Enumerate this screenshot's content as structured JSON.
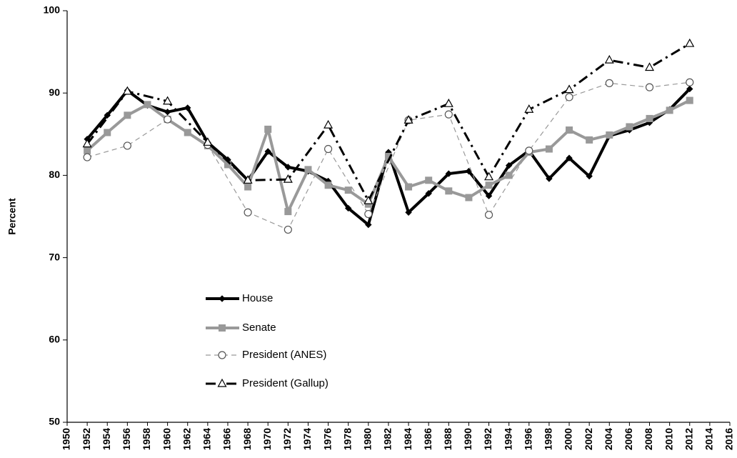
{
  "chart_data": {
    "type": "line",
    "y_label": "Percent",
    "xlim": [
      1950,
      2016
    ],
    "xticks": [
      1950,
      1952,
      1954,
      1956,
      1958,
      1960,
      1962,
      1964,
      1966,
      1968,
      1970,
      1972,
      1974,
      1976,
      1978,
      1980,
      1982,
      1984,
      1986,
      1988,
      1990,
      1992,
      1994,
      1996,
      1998,
      2000,
      2002,
      2004,
      2006,
      2008,
      2010,
      2012,
      2014,
      2016
    ],
    "ylim": [
      50,
      100
    ],
    "yticks": [
      50,
      60,
      70,
      80,
      90,
      100
    ],
    "grid": false,
    "legend": "lower-left",
    "series": [
      {
        "name": "House",
        "color": "#000000",
        "line_style": "solid",
        "marker": "diamond",
        "x": [
          1952,
          1954,
          1956,
          1958,
          1960,
          1962,
          1964,
          1966,
          1968,
          1970,
          1972,
          1974,
          1976,
          1978,
          1980,
          1982,
          1984,
          1986,
          1988,
          1990,
          1992,
          1994,
          1996,
          1998,
          2000,
          2002,
          2004,
          2006,
          2008,
          2010,
          2012
        ],
        "values": [
          84.4,
          87.3,
          90.3,
          88.5,
          87.7,
          88.2,
          84,
          81.9,
          79.4,
          82.9,
          81,
          80.5,
          79.3,
          76,
          74,
          82.8,
          75.5,
          77.8,
          80.2,
          80.5,
          77.5,
          81.2,
          83,
          79.6,
          82.1,
          79.9,
          84.8,
          85.5,
          86.4,
          88,
          90.5
        ]
      },
      {
        "name": "Senate",
        "color": "#999999",
        "line_style": "solid",
        "marker": "square",
        "x": [
          1952,
          1954,
          1956,
          1958,
          1960,
          1962,
          1964,
          1966,
          1968,
          1970,
          1972,
          1974,
          1976,
          1978,
          1980,
          1982,
          1984,
          1986,
          1988,
          1990,
          1992,
          1994,
          1996,
          1998,
          2000,
          2002,
          2004,
          2006,
          2008,
          2010,
          2012
        ],
        "values": [
          83,
          85.2,
          87.3,
          88.6,
          86.8,
          85.2,
          83.6,
          81.3,
          78.6,
          85.6,
          75.6,
          80.7,
          78.8,
          78.2,
          76.5,
          82.3,
          78.6,
          79.4,
          78.1,
          77.3,
          78.8,
          80,
          82.8,
          83.2,
          85.5,
          84.3,
          84.9,
          85.9,
          86.9,
          87.9,
          89.1
        ]
      },
      {
        "name": "President (ANES)",
        "color": "#999999",
        "line_style": "dashed",
        "marker": "circle",
        "x": [
          1952,
          1956,
          1960,
          1964,
          1968,
          1972,
          1976,
          1980,
          1984,
          1988,
          1992,
          1996,
          2000,
          2004,
          2008,
          2012
        ],
        "values": [
          82.2,
          83.6,
          86.8,
          83.7,
          75.5,
          73.4,
          83.2,
          75.3,
          86.7,
          87.4,
          75.2,
          83,
          89.5,
          91.2,
          90.7,
          91.3
        ]
      },
      {
        "name": "President (Gallup)",
        "color": "#000000",
        "line_style": "dash-dot",
        "marker": "triangle",
        "x": [
          1952,
          1956,
          1960,
          1964,
          1968,
          1972,
          1976,
          1980,
          1984,
          1988,
          1992,
          1996,
          2000,
          2004,
          2008,
          2012
        ],
        "values": [
          83.8,
          90.2,
          89,
          84,
          79.4,
          79.5,
          86.1,
          76.9,
          86.7,
          88.7,
          79.8,
          88,
          90.4,
          94,
          93.1,
          96
        ]
      }
    ]
  }
}
